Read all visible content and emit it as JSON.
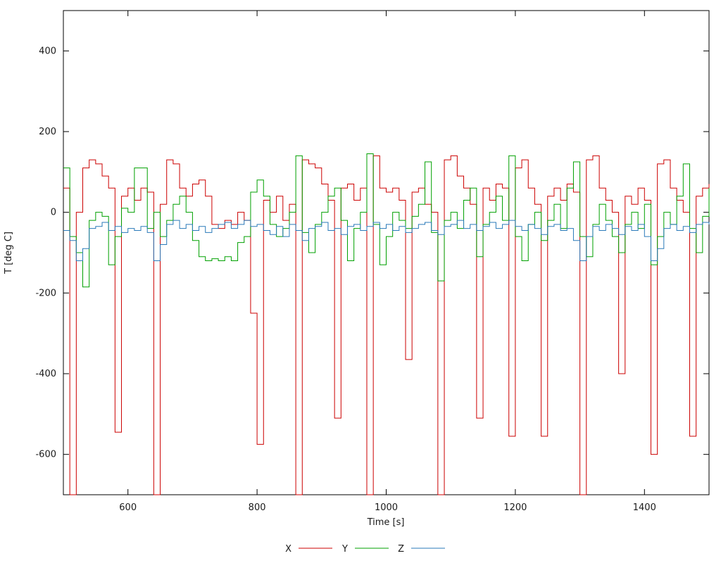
{
  "chart_data": {
    "type": "line",
    "title": "",
    "xlabel": "Time [s]",
    "ylabel": "T [deg C]",
    "xlim": [
      500,
      1500
    ],
    "ylim": [
      -700,
      500
    ],
    "xticks": [
      600,
      800,
      1000,
      1200,
      1400
    ],
    "yticks": [
      -600,
      -400,
      -200,
      0,
      200,
      400
    ],
    "grid": false,
    "legend_position": "bottom-center",
    "line_interpolation": "step-after",
    "border_color": "#000000",
    "x": [
      500,
      510,
      520,
      530,
      540,
      550,
      560,
      570,
      580,
      590,
      600,
      610,
      620,
      630,
      640,
      650,
      660,
      670,
      680,
      690,
      700,
      710,
      720,
      730,
      740,
      750,
      760,
      770,
      780,
      790,
      800,
      810,
      820,
      830,
      840,
      850,
      860,
      870,
      880,
      890,
      900,
      910,
      920,
      930,
      940,
      950,
      960,
      970,
      980,
      990,
      1000,
      1010,
      1020,
      1030,
      1040,
      1050,
      1060,
      1070,
      1080,
      1090,
      1100,
      1110,
      1120,
      1130,
      1140,
      1150,
      1160,
      1170,
      1180,
      1190,
      1200,
      1210,
      1220,
      1230,
      1240,
      1250,
      1260,
      1270,
      1280,
      1290,
      1300,
      1310,
      1320,
      1330,
      1340,
      1350,
      1360,
      1370,
      1380,
      1390,
      1400,
      1410,
      1420,
      1430,
      1440,
      1450,
      1460,
      1470,
      1480,
      1490,
      1500
    ],
    "series": [
      {
        "name": "X",
        "color": "#cc0000",
        "values": [
          60,
          -700,
          0,
          110,
          130,
          120,
          90,
          60,
          -545,
          40,
          60,
          30,
          60,
          50,
          -700,
          20,
          130,
          120,
          60,
          40,
          70,
          80,
          40,
          -30,
          -40,
          -20,
          -30,
          0,
          -20,
          -250,
          -575,
          30,
          0,
          40,
          -20,
          20,
          -700,
          130,
          120,
          110,
          70,
          30,
          -510,
          60,
          70,
          30,
          60,
          -700,
          140,
          60,
          50,
          60,
          30,
          -365,
          50,
          60,
          20,
          0,
          -700,
          130,
          140,
          90,
          60,
          20,
          -510,
          60,
          30,
          70,
          60,
          -555,
          110,
          130,
          60,
          20,
          -555,
          40,
          60,
          30,
          70,
          50,
          -700,
          130,
          140,
          60,
          30,
          0,
          -400,
          40,
          20,
          60,
          30,
          -600,
          120,
          130,
          60,
          30,
          0,
          -555,
          40,
          60,
          70
        ]
      },
      {
        "name": "Y",
        "color": "#00a000",
        "values": [
          110,
          -60,
          -100,
          -185,
          -20,
          0,
          -10,
          -130,
          -60,
          10,
          0,
          110,
          110,
          -40,
          0,
          -60,
          -20,
          20,
          40,
          0,
          -70,
          -110,
          -120,
          -115,
          -120,
          -110,
          -120,
          -75,
          -60,
          50,
          80,
          40,
          -30,
          -60,
          -40,
          0,
          140,
          -50,
          -100,
          -30,
          0,
          40,
          60,
          -20,
          -120,
          -40,
          0,
          145,
          -30,
          -130,
          -60,
          0,
          -20,
          -40,
          -10,
          20,
          125,
          -50,
          -170,
          -20,
          0,
          -40,
          30,
          60,
          -110,
          -30,
          0,
          40,
          -20,
          140,
          -60,
          -120,
          -30,
          0,
          -70,
          -20,
          20,
          -40,
          60,
          125,
          -60,
          -110,
          -30,
          20,
          -20,
          -60,
          -100,
          -30,
          0,
          -40,
          20,
          -130,
          -60,
          0,
          -30,
          40,
          120,
          -40,
          -100,
          -10,
          60
        ]
      },
      {
        "name": "Z",
        "color": "#2a7ab9",
        "values": [
          -45,
          -70,
          -120,
          -90,
          -40,
          -35,
          -25,
          -45,
          -35,
          -50,
          -40,
          -45,
          -35,
          -50,
          -120,
          -80,
          -30,
          -20,
          -40,
          -30,
          -45,
          -35,
          -50,
          -40,
          -30,
          -25,
          -40,
          -30,
          -20,
          -35,
          -30,
          -45,
          -55,
          -35,
          -60,
          -30,
          -45,
          -70,
          -40,
          -35,
          -25,
          -45,
          -40,
          -55,
          -35,
          -30,
          -45,
          -35,
          -25,
          -40,
          -30,
          -45,
          -35,
          -50,
          -40,
          -30,
          -25,
          -45,
          -55,
          -35,
          -30,
          -20,
          -40,
          -30,
          -45,
          -35,
          -25,
          -40,
          -30,
          -20,
          -35,
          -45,
          -30,
          -40,
          -55,
          -35,
          -30,
          -45,
          -40,
          -70,
          -120,
          -60,
          -35,
          -45,
          -30,
          -40,
          -55,
          -35,
          -45,
          -30,
          -60,
          -120,
          -90,
          -40,
          -30,
          -45,
          -35,
          -50,
          -30,
          -25,
          -30
        ]
      }
    ]
  }
}
